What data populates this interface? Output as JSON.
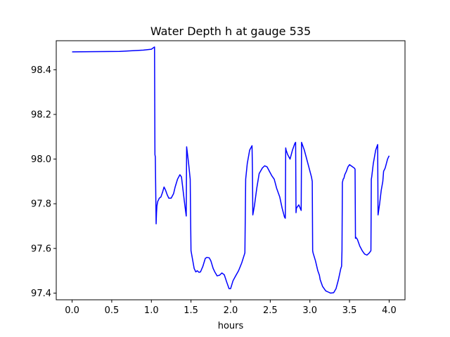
{
  "chart_data": {
    "type": "line",
    "title": "Water Depth h at gauge 535",
    "xlabel": "hours",
    "ylabel": "",
    "xlim": [
      -0.2,
      4.2
    ],
    "ylim": [
      97.37,
      98.53
    ],
    "xticks": [
      0.0,
      0.5,
      1.0,
      1.5,
      2.0,
      2.5,
      3.0,
      3.5,
      4.0
    ],
    "xtick_labels": [
      "0.0",
      "0.5",
      "1.0",
      "1.5",
      "2.0",
      "2.5",
      "3.0",
      "3.5",
      "4.0"
    ],
    "yticks": [
      97.4,
      97.6,
      97.8,
      98.0,
      98.2,
      98.4
    ],
    "ytick_labels": [
      "97.4",
      "97.6",
      "97.8",
      "98.0",
      "98.2",
      "98.4"
    ],
    "grid": false,
    "series": [
      {
        "color": "#0000ff",
        "x": [
          0.0,
          0.6,
          0.9,
          1.0,
          1.04,
          1.045,
          1.05,
          1.06,
          1.065,
          1.07,
          1.08,
          1.1,
          1.12,
          1.14,
          1.16,
          1.18,
          1.2,
          1.22,
          1.25,
          1.28,
          1.3,
          1.33,
          1.36,
          1.38,
          1.4,
          1.42,
          1.44,
          1.445,
          1.45,
          1.47,
          1.49,
          1.495,
          1.5,
          1.52,
          1.54,
          1.56,
          1.58,
          1.6,
          1.62,
          1.65,
          1.68,
          1.7,
          1.73,
          1.75,
          1.78,
          1.8,
          1.83,
          1.86,
          1.89,
          1.92,
          1.95,
          1.98,
          2.0,
          2.03,
          2.06,
          2.1,
          2.14,
          2.18,
          2.19,
          2.21,
          2.24,
          2.27,
          2.275,
          2.28,
          2.3,
          2.33,
          2.36,
          2.4,
          2.43,
          2.46,
          2.49,
          2.52,
          2.55,
          2.58,
          2.62,
          2.65,
          2.68,
          2.69,
          2.695,
          2.7,
          2.72,
          2.75,
          2.78,
          2.81,
          2.82,
          2.825,
          2.83,
          2.86,
          2.89,
          2.895,
          2.9,
          2.93,
          2.96,
          2.99,
          3.02,
          3.03,
          3.035,
          3.04,
          3.07,
          3.1,
          3.12,
          3.13,
          3.16,
          3.2,
          3.23,
          3.26,
          3.3,
          3.33,
          3.36,
          3.39,
          3.4,
          3.405,
          3.41,
          3.42,
          3.43,
          3.44,
          3.46,
          3.48,
          3.5,
          3.52,
          3.54,
          3.56,
          3.57,
          3.575,
          3.58,
          3.6,
          3.63,
          3.66,
          3.69,
          3.72,
          3.75,
          3.77,
          3.775,
          3.78,
          3.8,
          3.83,
          3.855,
          3.86,
          3.88,
          3.9,
          3.92,
          3.93,
          3.95,
          3.98,
          4.0
        ],
        "y": [
          98.48,
          98.482,
          98.488,
          98.492,
          98.502,
          98.02,
          98.01,
          97.71,
          97.76,
          97.79,
          97.81,
          97.825,
          97.83,
          97.85,
          97.875,
          97.86,
          97.84,
          97.825,
          97.825,
          97.845,
          97.875,
          97.91,
          97.93,
          97.92,
          97.86,
          97.8,
          97.745,
          98.055,
          98.04,
          97.98,
          97.91,
          97.74,
          97.59,
          97.55,
          97.51,
          97.495,
          97.5,
          97.493,
          97.495,
          97.52,
          97.555,
          97.56,
          97.558,
          97.545,
          97.51,
          97.495,
          97.477,
          97.48,
          97.49,
          97.482,
          97.45,
          97.42,
          97.42,
          97.455,
          97.475,
          97.5,
          97.535,
          97.58,
          97.91,
          97.98,
          98.04,
          98.06,
          97.96,
          97.75,
          97.79,
          97.87,
          97.935,
          97.96,
          97.97,
          97.965,
          97.945,
          97.925,
          97.91,
          97.87,
          97.83,
          97.78,
          97.74,
          97.735,
          98.05,
          98.04,
          98.02,
          98.0,
          98.04,
          98.07,
          98.075,
          97.76,
          97.78,
          97.795,
          97.77,
          98.075,
          98.07,
          98.04,
          98.0,
          97.96,
          97.92,
          97.9,
          97.59,
          97.58,
          97.545,
          97.5,
          97.48,
          97.46,
          97.43,
          97.41,
          97.405,
          97.4,
          97.402,
          97.42,
          97.46,
          97.51,
          97.52,
          97.59,
          97.895,
          97.91,
          97.915,
          97.93,
          97.945,
          97.965,
          97.975,
          97.97,
          97.965,
          97.96,
          97.955,
          97.645,
          97.65,
          97.64,
          97.61,
          97.59,
          97.575,
          97.57,
          97.58,
          97.59,
          97.91,
          97.92,
          97.98,
          98.04,
          98.065,
          97.75,
          97.8,
          97.86,
          97.9,
          97.945,
          97.96,
          98.0,
          98.015
        ]
      }
    ]
  }
}
